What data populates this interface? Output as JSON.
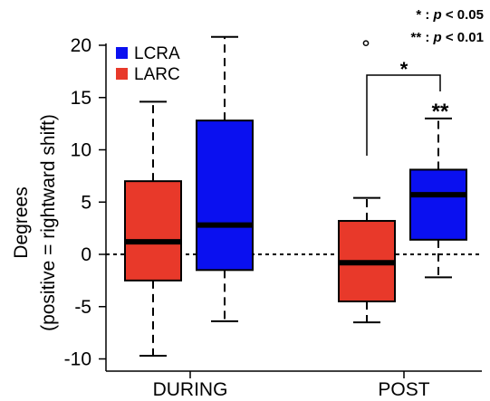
{
  "chart_data": {
    "type": "box",
    "ylabel_line1": "Degrees",
    "ylabel_line2": "(positive = rightward shift)",
    "ylim": [
      -11,
      22
    ],
    "yticks": [
      -10,
      -5,
      0,
      5,
      10,
      15,
      20
    ],
    "ytick_labels": [
      "-10",
      "-5",
      "0",
      "5",
      "10",
      "15",
      "20"
    ],
    "categories": [
      "DURING",
      "POST"
    ],
    "reference_line": 0,
    "series": [
      {
        "name": "LARC",
        "color": "#e8392a"
      },
      {
        "name": "LCRA",
        "color": "#0a10f0"
      }
    ],
    "boxes": [
      {
        "category": "DURING",
        "series": "LARC",
        "whisker_low": -9.7,
        "q1": -2.5,
        "median": 1.2,
        "q3": 7.0,
        "whisker_high": 14.6,
        "outliers": []
      },
      {
        "category": "DURING",
        "series": "LCRA",
        "whisker_low": -6.4,
        "q1": -1.5,
        "median": 2.8,
        "q3": 12.8,
        "whisker_high": 20.8,
        "outliers": []
      },
      {
        "category": "POST",
        "series": "LARC",
        "whisker_low": -6.5,
        "q1": -4.5,
        "median": -0.8,
        "q3": 3.2,
        "whisker_high": 5.4,
        "outliers": []
      },
      {
        "category": "POST",
        "series": "LCRA",
        "whisker_low": -2.2,
        "q1": 1.4,
        "median": 5.7,
        "q3": 8.1,
        "whisker_high": 13.0,
        "outliers": [
          20.2
        ]
      }
    ],
    "annotations": {
      "bracket_star": "*",
      "box_star": "**",
      "sig_line1": {
        "stars": "* : ",
        "p": "p",
        "rest": " < 0.05"
      },
      "sig_line2": {
        "stars": "** : ",
        "p": "p",
        "rest": " < 0.01"
      }
    }
  }
}
